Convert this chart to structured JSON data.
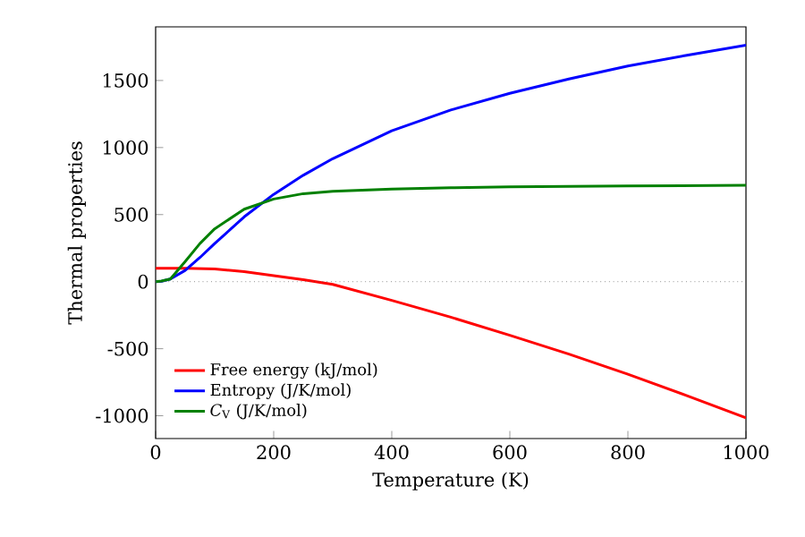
{
  "chart_data": {
    "type": "line",
    "xlabel": "Temperature (K)",
    "ylabel": "Thermal properties",
    "xlim": [
      0,
      1000
    ],
    "ylim": [
      -1170,
      1900
    ],
    "xticks": [
      0,
      200,
      400,
      600,
      800,
      1000
    ],
    "yticks": [
      -1000,
      -500,
      0,
      500,
      1000,
      1500
    ],
    "legend": "bottom left",
    "grid": false,
    "marker": "none",
    "line_style": "solid",
    "ref_lines": [
      {
        "axis": "y",
        "value": 0,
        "color": "#555555",
        "line_style": "dotted"
      }
    ],
    "series": [
      {
        "name": "Free energy (kJ/mol)",
        "color": "#ff0000",
        "x": [
          0,
          50,
          100,
          150,
          200,
          250,
          300,
          400,
          500,
          600,
          700,
          800,
          900,
          1000
        ],
        "values": [
          100,
          99,
          95,
          75,
          45,
          15,
          -20,
          -140,
          -265,
          -400,
          -540,
          -690,
          -850,
          -1015
        ]
      },
      {
        "name": "Entropy (J/K/mol)",
        "color": "#0000ff",
        "x": [
          0,
          10,
          25,
          50,
          75,
          100,
          150,
          200,
          250,
          300,
          400,
          500,
          600,
          700,
          800,
          900,
          1000
        ],
        "values": [
          0,
          3,
          20,
          84,
          180,
          284,
          483,
          651,
          793,
          917,
          1125,
          1280,
          1404,
          1511,
          1608,
          1688,
          1763
        ]
      },
      {
        "name": "*C*$_{V}$ (J/K/mol)",
        "color": "#008000",
        "x": [
          0,
          10,
          25,
          50,
          75,
          100,
          150,
          200,
          250,
          300,
          400,
          500,
          600,
          800,
          1000
        ],
        "values": [
          0,
          5,
          20,
          150,
          284,
          394,
          540,
          616,
          656,
          673,
          691,
          700,
          707,
          713,
          718
        ]
      }
    ]
  }
}
